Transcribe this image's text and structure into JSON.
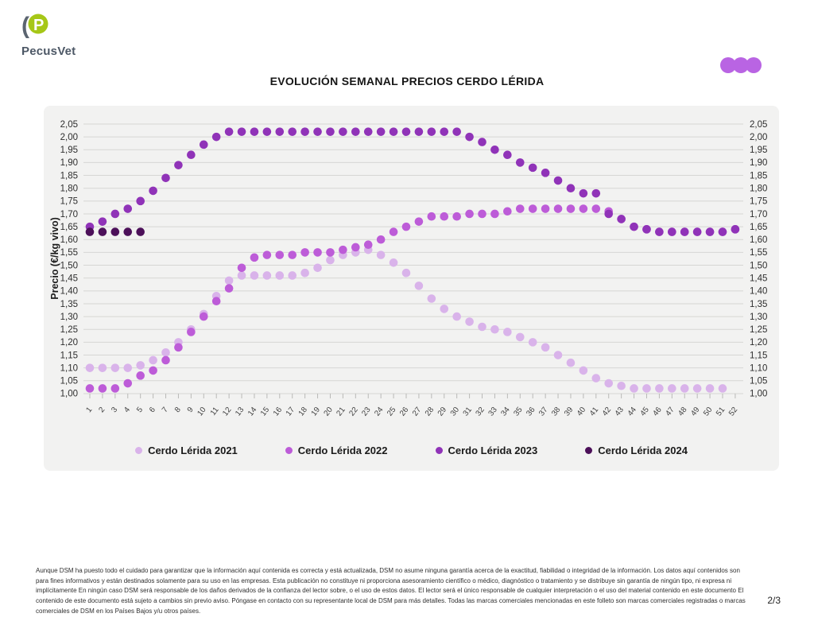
{
  "header": {
    "logo_text": "PecusVet",
    "logo_letter": "P",
    "brand_green": "#a6c717",
    "brand_gray": "#5b6470",
    "dots_color": "#b964e3"
  },
  "title": "EVOLUCIÓN SEMANAL PRECIOS CERDO LÉRIDA",
  "chart_data": {
    "type": "scatter",
    "title": "EVOLUCIÓN SEMANAL PRECIOS CERDO LÉRIDA",
    "xlabel": "",
    "ylabel": "Precio (€/kg vivo)",
    "ylim": [
      1.0,
      2.05
    ],
    "ytick_step": 0.05,
    "grid": true,
    "legend_position": "bottom",
    "x": [
      1,
      2,
      3,
      4,
      5,
      6,
      7,
      8,
      9,
      10,
      11,
      12,
      13,
      14,
      15,
      16,
      17,
      18,
      19,
      20,
      21,
      22,
      23,
      24,
      25,
      26,
      27,
      28,
      29,
      30,
      31,
      32,
      33,
      34,
      35,
      36,
      37,
      38,
      39,
      40,
      41,
      42,
      43,
      44,
      45,
      46,
      47,
      48,
      49,
      50,
      51,
      52
    ],
    "series": [
      {
        "name": "Cerdo Lérida 2021",
        "color": "#d9b3ea",
        "values": [
          1.1,
          1.1,
          1.1,
          1.1,
          1.11,
          1.13,
          1.16,
          1.2,
          1.25,
          1.31,
          1.38,
          1.44,
          1.46,
          1.46,
          1.46,
          1.46,
          1.46,
          1.47,
          1.49,
          1.52,
          1.54,
          1.55,
          1.56,
          1.54,
          1.51,
          1.47,
          1.42,
          1.37,
          1.33,
          1.3,
          1.28,
          1.26,
          1.25,
          1.24,
          1.22,
          1.2,
          1.18,
          1.15,
          1.12,
          1.09,
          1.06,
          1.04,
          1.03,
          1.02,
          1.02,
          1.02,
          1.02,
          1.02,
          1.02,
          1.02,
          1.02,
          null
        ]
      },
      {
        "name": "Cerdo Lérida 2022",
        "color": "#bd5cd8",
        "values": [
          1.02,
          1.02,
          1.02,
          1.04,
          1.07,
          1.09,
          1.13,
          1.18,
          1.24,
          1.3,
          1.36,
          1.41,
          1.49,
          1.53,
          1.54,
          1.54,
          1.54,
          1.55,
          1.55,
          1.55,
          1.56,
          1.57,
          1.58,
          1.6,
          1.63,
          1.65,
          1.67,
          1.69,
          1.69,
          1.69,
          1.7,
          1.7,
          1.7,
          1.71,
          1.72,
          1.72,
          1.72,
          1.72,
          1.72,
          1.72,
          1.72,
          1.71,
          1.68,
          1.65,
          1.64,
          1.63,
          1.63,
          1.63,
          1.63,
          1.63,
          1.63,
          1.64
        ]
      },
      {
        "name": "Cerdo Lérida 2023",
        "color": "#9033b8",
        "values": [
          1.65,
          1.67,
          1.7,
          1.72,
          1.75,
          1.79,
          1.84,
          1.89,
          1.93,
          1.97,
          2.0,
          2.02,
          2.02,
          2.02,
          2.02,
          2.02,
          2.02,
          2.02,
          2.02,
          2.02,
          2.02,
          2.02,
          2.02,
          2.02,
          2.02,
          2.02,
          2.02,
          2.02,
          2.02,
          2.02,
          2.0,
          1.98,
          1.95,
          1.93,
          1.9,
          1.88,
          1.86,
          1.83,
          1.8,
          1.78,
          1.78,
          1.7,
          1.68,
          1.65,
          1.64,
          1.63,
          1.63,
          1.63,
          1.63,
          1.63,
          1.63,
          1.64
        ]
      },
      {
        "name": "Cerdo Lérida 2024",
        "color": "#4c1059",
        "values": [
          1.63,
          1.63,
          1.63,
          1.63,
          1.63,
          null,
          null,
          null,
          null,
          null,
          null,
          null,
          null,
          null,
          null,
          null,
          null,
          null,
          null,
          null,
          null,
          null,
          null,
          null,
          null,
          null,
          null,
          null,
          null,
          null,
          null,
          null,
          null,
          null,
          null,
          null,
          null,
          null,
          null,
          null,
          null,
          null,
          null,
          null,
          null,
          null,
          null,
          null,
          null,
          null,
          null,
          null
        ]
      }
    ]
  },
  "footer": {
    "disclaimer": "Aunque DSM ha puesto todo el cuidado para garantizar que la información aquí contenida es correcta y está actualizada, DSM no asume ninguna garantía acerca de la exactitud, fiabilidad o integridad de la información. Los datos aquí contenidos son para fines informativos y están destinados solamente para su uso en las empresas. Esta publicación no constituye ni proporciona asesoramiento científico o médico, diagnóstico o tratamiento y se distribuye sin garantía de ningún tipo, ni expresa ni implícitamente En ningún caso DSM será responsable de los daños derivados de la confianza del lector sobre, o el uso de estos datos. El lector será el único responsable de cualquier interpretación o el uso del material contenido en este documento El contenido de este documento está sujeto a cambios sin previo aviso. Póngase en contacto con su representante local de DSM para más detalles. Todas las marcas comerciales mencionadas en este folleto son marcas comerciales registradas o marcas comerciales de DSM en los Países Bajos y/u otros países.",
    "page": "2/3"
  }
}
